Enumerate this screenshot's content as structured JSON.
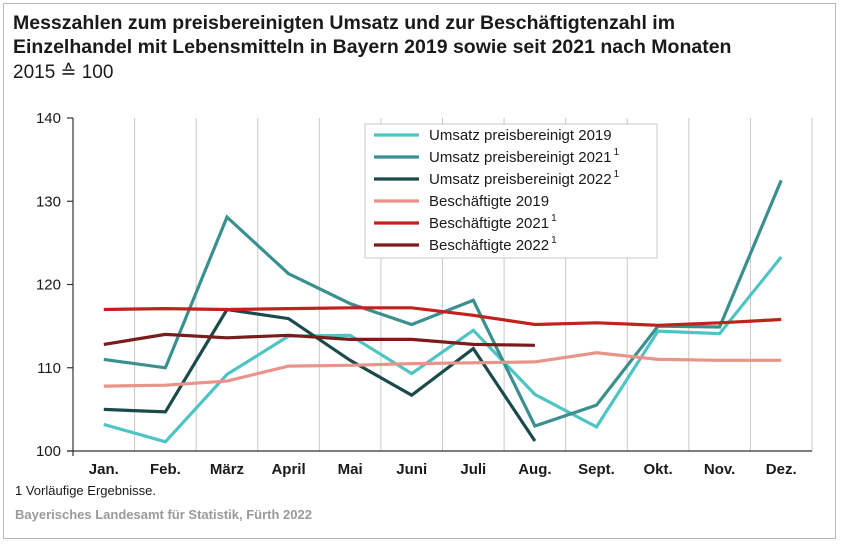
{
  "title_lines": [
    "Messzahlen zum preisbereinigten Umsatz und zur Beschäftigtenzahl im",
    "Einzelhandel mit Lebensmitteln in Bayern 2019 sowie seit 2021 nach Monaten"
  ],
  "subtitle": "2015 ≙ 100",
  "footnote": "1  Vorläufige Ergebnisse.",
  "source": "Bayerisches Landesamt für Statistik, Fürth 2022",
  "chart_data": {
    "type": "line",
    "categories": [
      "Jan.",
      "Feb.",
      "März",
      "April",
      "Mai",
      "Juni",
      "Juli",
      "Aug.",
      "Sept.",
      "Okt.",
      "Nov.",
      "Dez."
    ],
    "ylim": [
      100,
      140
    ],
    "yticks": [
      "100",
      "110",
      "120",
      "130",
      "140"
    ],
    "grid": "vertical",
    "legend_position": "top-center",
    "series": [
      {
        "name": "Umsatz preisbereinigt 2019",
        "sup": "",
        "color": "#4fc4c4",
        "values": [
          103.2,
          101.1,
          109.2,
          113.8,
          113.9,
          109.3,
          114.5,
          106.8,
          102.9,
          114.4,
          114.1,
          123.3
        ]
      },
      {
        "name": "Umsatz preisbereinigt 2021",
        "sup": "1",
        "color": "#3a8f8f",
        "values": [
          111.0,
          110.0,
          128.1,
          121.3,
          117.7,
          115.2,
          118.1,
          103.0,
          105.5,
          115.0,
          114.9,
          132.5
        ]
      },
      {
        "name": "Umsatz preisbereinigt 2022",
        "sup": "1",
        "color": "#1a4a4a",
        "values": [
          105.0,
          104.7,
          117.0,
          115.9,
          110.9,
          106.7,
          112.3,
          101.2,
          null,
          null,
          null,
          null
        ]
      },
      {
        "name": "Beschäftigte 2019",
        "sup": "",
        "color": "#e8948a",
        "values": [
          107.8,
          107.9,
          108.4,
          110.2,
          110.3,
          110.5,
          110.6,
          110.7,
          111.8,
          111.0,
          110.9,
          110.9
        ]
      },
      {
        "name": "Beschäftigte 2021",
        "sup": "1",
        "color": "#c0221c",
        "values": [
          117.0,
          117.1,
          117.0,
          117.1,
          117.2,
          117.2,
          116.3,
          115.2,
          115.4,
          115.1,
          115.4,
          115.8
        ]
      },
      {
        "name": "Beschäftigte 2022",
        "sup": "1",
        "color": "#7a1c1c",
        "values": [
          112.8,
          114.0,
          113.6,
          113.9,
          113.4,
          113.4,
          112.8,
          112.7,
          null,
          null,
          null,
          null
        ]
      }
    ]
  }
}
